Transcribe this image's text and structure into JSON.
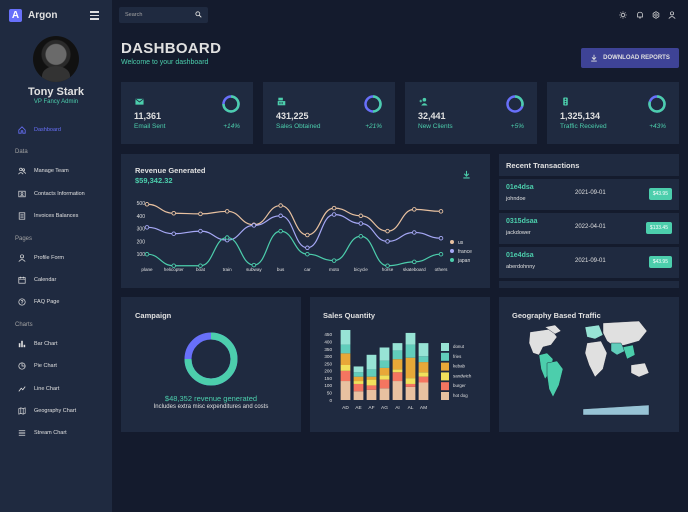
{
  "app": {
    "name": "Argon",
    "logo_letter": "A"
  },
  "user": {
    "name": "Tony Stark",
    "role": "VP Fancy Admin"
  },
  "sidebar": {
    "dashboard": {
      "label": "Dashboard",
      "icon": "home-icon"
    },
    "sections": [
      {
        "title": "Data",
        "items": [
          {
            "label": "Manage Team",
            "icon": "people-icon"
          },
          {
            "label": "Contacts Information",
            "icon": "contacts-icon"
          },
          {
            "label": "Invoices Balances",
            "icon": "receipt-icon"
          }
        ]
      },
      {
        "title": "Pages",
        "items": [
          {
            "label": "Profile Form",
            "icon": "person-icon"
          },
          {
            "label": "Calendar",
            "icon": "calendar-icon"
          },
          {
            "label": "FAQ Page",
            "icon": "help-icon"
          }
        ]
      },
      {
        "title": "Charts",
        "items": [
          {
            "label": "Bar Chart",
            "icon": "bar-chart-icon"
          },
          {
            "label": "Pie Chart",
            "icon": "pie-chart-icon"
          },
          {
            "label": "Line Chart",
            "icon": "line-chart-icon"
          },
          {
            "label": "Geography Chart",
            "icon": "map-icon"
          },
          {
            "label": "Stream Chart",
            "icon": "stream-icon"
          }
        ]
      }
    ]
  },
  "topbar": {
    "search_placeholder": "Search"
  },
  "header": {
    "title": "DASHBOARD",
    "subtitle": "Welcome to your dashboard",
    "download_label": "DOWNLOAD REPORTS"
  },
  "stats": [
    {
      "value": "11,361",
      "label": "Email Sent",
      "change": "+14%",
      "progress": 0.75,
      "icon": "email-icon"
    },
    {
      "value": "431,225",
      "label": "Sales Obtained",
      "change": "+21%",
      "progress": 0.5,
      "icon": "point-of-sale-icon"
    },
    {
      "value": "32,441",
      "label": "New Clients",
      "change": "+5%",
      "progress": 0.3,
      "icon": "person-add-icon"
    },
    {
      "value": "1,325,134",
      "label": "Traffic Received",
      "change": "+43%",
      "progress": 0.8,
      "icon": "traffic-icon"
    }
  ],
  "revenue": {
    "title": "Revenue Generated",
    "value": "$59,342.32"
  },
  "transactions": {
    "title": "Recent Transactions",
    "rows": [
      {
        "id": "01e4dsa",
        "user": "johndoe",
        "date": "2021-09-01",
        "cost": "$43.95"
      },
      {
        "id": "0315dsaa",
        "user": "jackdower",
        "date": "2022-04-01",
        "cost": "$133.45"
      },
      {
        "id": "01e4dsa",
        "user": "aberdohnny",
        "date": "2021-09-01",
        "cost": "$43.95"
      }
    ]
  },
  "campaign": {
    "title": "Campaign",
    "revenue_text": "$48,352 revenue generated",
    "note": "Includes extra misc expenditures and costs",
    "progress": 0.75
  },
  "sales": {
    "title": "Sales Quantity"
  },
  "geo": {
    "title": "Geography Based Traffic"
  },
  "colors": {
    "accent": "#4cceac",
    "primary_btn": "#3e4396",
    "active": "#6870fa",
    "panel": "#1f2a40",
    "bg": "#141b2d"
  },
  "chart_data": [
    {
      "type": "line",
      "categories": [
        "plane",
        "helicopter",
        "boat",
        "train",
        "subway",
        "bus",
        "car",
        "moto",
        "bicycle",
        "horse",
        "skateboard",
        "others"
      ],
      "ylim": [
        0,
        500
      ],
      "yticks": [
        "100",
        "200",
        "300",
        "400",
        "500"
      ],
      "series": [
        {
          "name": "us",
          "color": "#e8c1a0",
          "values": [
            490,
            420,
            415,
            435,
            330,
            480,
            250,
            460,
            400,
            280,
            450,
            435
          ]
        },
        {
          "name": "france",
          "color": "#a6a8f5",
          "values": [
            310,
            260,
            280,
            210,
            325,
            400,
            150,
            410,
            340,
            200,
            270,
            225
          ]
        },
        {
          "name": "japan",
          "color": "#4cceac",
          "values": [
            100,
            10,
            10,
            230,
            15,
            280,
            100,
            50,
            240,
            10,
            40,
            100
          ]
        }
      ]
    },
    {
      "type": "bar",
      "categories": [
        "AD",
        "AE",
        "AF",
        "AG",
        "AI",
        "AL",
        "AM"
      ],
      "ylim": [
        0,
        480
      ],
      "yticks": [
        "0",
        "50",
        "100",
        "150",
        "200",
        "250",
        "300",
        "350",
        "400",
        "450"
      ],
      "series": [
        {
          "name": "hot dog",
          "color": "#e8c1a0",
          "values": [
            130,
            60,
            70,
            80,
            130,
            90,
            120
          ]
        },
        {
          "name": "burger",
          "color": "#f47560",
          "values": [
            70,
            50,
            30,
            60,
            60,
            20,
            40
          ]
        },
        {
          "name": "sandwich",
          "color": "#f1e15b",
          "values": [
            40,
            20,
            40,
            30,
            20,
            40,
            30
          ]
        },
        {
          "name": "kebab",
          "color": "#e8a838",
          "values": [
            80,
            30,
            20,
            50,
            70,
            140,
            70
          ]
        },
        {
          "name": "fries",
          "color": "#61cdbb",
          "values": [
            60,
            30,
            50,
            50,
            60,
            90,
            40
          ]
        },
        {
          "name": "donut",
          "color": "#97e3d5",
          "values": [
            100,
            40,
            100,
            90,
            50,
            80,
            90
          ]
        }
      ]
    }
  ]
}
